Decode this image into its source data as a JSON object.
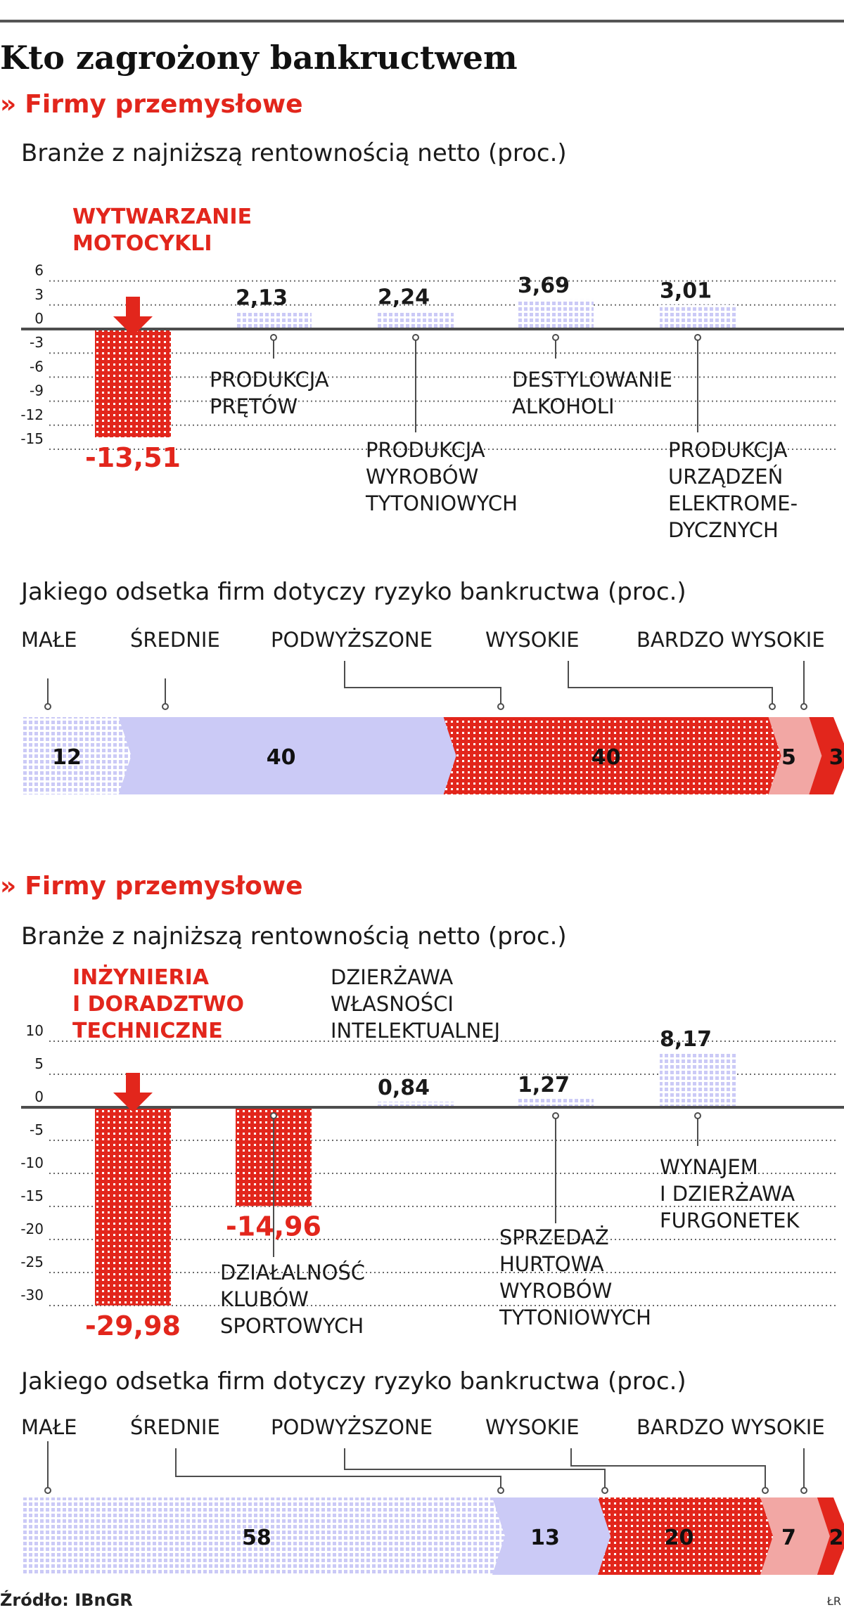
{
  "title": "Kto zagrożony bankructwem",
  "colors": {
    "red": "#e2261c",
    "lightblue": "#cbcaf6",
    "pink": "#f2a7a4",
    "axis": "#4d4d4d",
    "text": "#1a1a1a"
  },
  "icons": {
    "section": "double-chevron-icon",
    "highlight": "down-arrow-icon"
  },
  "source": "Źródło: IBnGR",
  "author": "ŁR",
  "sections": [
    {
      "label": "Firmy przemysłowe",
      "profit_title": "Branże z najniższą rentownością netto (proc.)",
      "risk_title": "Jakiego odsetka firm dotyczy ryzyko bankructwa (proc.)"
    },
    {
      "label": "Firmy przemysłowe",
      "profit_title": "Branże z najniższą rentownością netto (proc.)",
      "risk_title": "Jakiego odsetka firm dotyczy ryzyko bankructwa (proc.)"
    }
  ],
  "chart_data": [
    {
      "type": "bar",
      "ylim": [
        -15,
        6
      ],
      "yticks": [
        6,
        3,
        0,
        -3,
        -6,
        -9,
        -12,
        -15
      ],
      "highlight": "WYTWARZANIE MOTOCYKLI",
      "bars": [
        {
          "lines": [
            "WYTWARZANIE",
            "MOTOCYKLI"
          ],
          "value": -13.51,
          "label": "-13,51"
        },
        {
          "lines": [
            "PRODUKCJA",
            "PRĘTÓW"
          ],
          "value": 2.13,
          "label": "2,13"
        },
        {
          "lines": [
            "PRODUKCJA",
            "WYROBÓW",
            "TYTONIOWYCH"
          ],
          "value": 2.24,
          "label": "2,24"
        },
        {
          "lines": [
            "DESTYLOWANIE",
            "ALKOHOLI"
          ],
          "value": 3.69,
          "label": "3,69"
        },
        {
          "lines": [
            "PRODUKCJA",
            "URZĄDZEŃ",
            "ELEKTROME-",
            "DYCZNYCH"
          ],
          "value": 3.01,
          "label": "3,01"
        }
      ]
    },
    {
      "type": "bar",
      "segment_kind": "risk",
      "categories": [
        "MAŁE",
        "ŚREDNIE",
        "PODWYŻSZONE",
        "WYSOKIE",
        "BARDZO WYSOKIE"
      ],
      "values": [
        12,
        40,
        40,
        5,
        3
      ]
    },
    {
      "type": "bar",
      "ylim": [
        -30,
        10
      ],
      "yticks": [
        10,
        5,
        0,
        -5,
        -10,
        -15,
        -20,
        -25,
        -30
      ],
      "highlight": "INŻYNIERIA I DORADZTWO TECHNICZNE",
      "bars": [
        {
          "lines": [
            "INŻYNIERIA",
            "I DORADZTWO",
            "TECHNICZNE"
          ],
          "value": -29.98,
          "label": "-29,98"
        },
        {
          "lines": [
            "DZIAŁALNOŚĆ",
            "KLUBÓW",
            "SPORTOWYCH"
          ],
          "value": -14.96,
          "label": "-14,96"
        },
        {
          "lines": [
            "DZIERŻAWA",
            "WŁASNOŚCI",
            "INTELEKTUALNEJ"
          ],
          "value": 0.84,
          "label": "0,84"
        },
        {
          "lines": [
            "SPRZEDAŻ",
            "HURTOWA",
            "WYROBÓW",
            "TYTONIOWYCH"
          ],
          "value": 1.27,
          "label": "1,27"
        },
        {
          "lines": [
            "WYNAJEM",
            "I DZIERŻAWA",
            "FURGONETEK"
          ],
          "value": 8.17,
          "label": "8,17"
        }
      ]
    },
    {
      "type": "bar",
      "segment_kind": "risk",
      "categories": [
        "MAŁE",
        "ŚREDNIE",
        "PODWYŻSZONE",
        "WYSOKIE",
        "BARDZO WYSOKIE"
      ],
      "values": [
        58,
        13,
        20,
        7,
        2
      ]
    }
  ]
}
